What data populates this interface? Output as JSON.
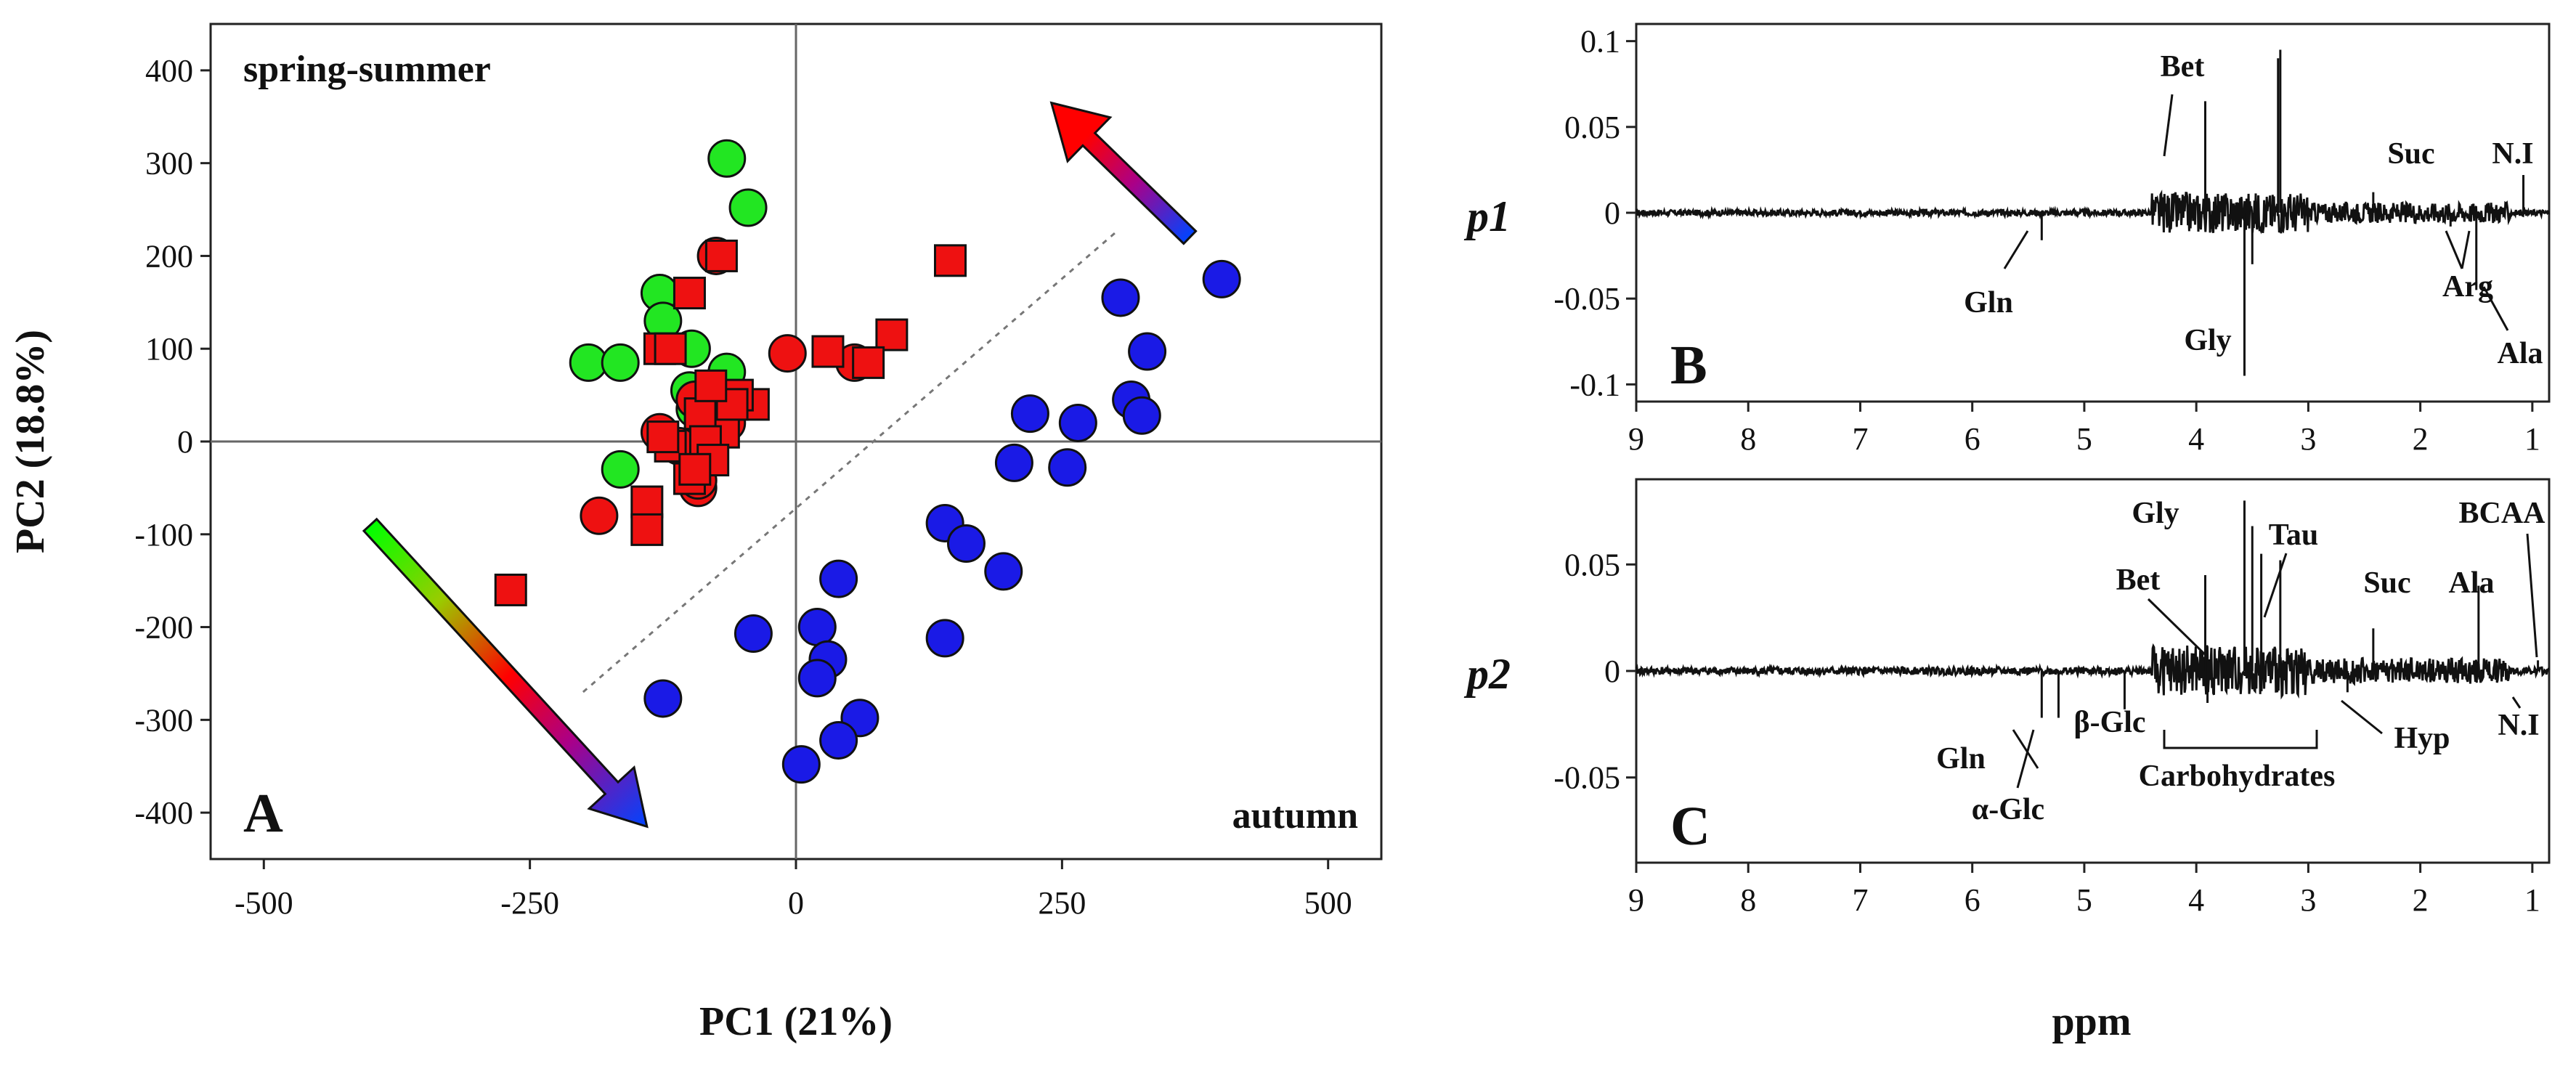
{
  "chart_data": [
    {
      "type": "scatter",
      "panel_label": "A",
      "xlabel": "PC1 (21%)",
      "ylabel": "PC2 (18.8%)",
      "xlim": [
        -550,
        550
      ],
      "ylim": [
        -450,
        450
      ],
      "xticks": [
        -500,
        -250,
        0,
        250,
        500
      ],
      "yticks": [
        400,
        300,
        200,
        100,
        0,
        -100,
        -200,
        -300,
        -400
      ],
      "annotations": [
        "spring-summer",
        "autumn"
      ],
      "series": [
        {
          "name": "green circles",
          "marker": "circle",
          "color": "#22e622",
          "points": [
            [
              -65,
              305
            ],
            [
              -45,
              252
            ],
            [
              -128,
              160
            ],
            [
              -125,
              130
            ],
            [
              -98,
              100
            ],
            [
              -195,
              85
            ],
            [
              -165,
              85
            ],
            [
              -100,
              55
            ],
            [
              -65,
              75
            ],
            [
              -95,
              35
            ],
            [
              -85,
              20
            ],
            [
              -165,
              -30
            ]
          ]
        },
        {
          "name": "red circles",
          "marker": "circle",
          "color": "#ee1111",
          "points": [
            [
              -75,
              200
            ],
            [
              -8,
              95
            ],
            [
              55,
              85
            ],
            [
              -92,
              -50
            ],
            [
              -128,
              10
            ],
            [
              -110,
              -5
            ],
            [
              -65,
              20
            ],
            [
              -95,
              45
            ],
            [
              -92,
              -42
            ],
            [
              -185,
              -80
            ]
          ]
        },
        {
          "name": "red squares",
          "marker": "square",
          "color": "#ee1111",
          "points": [
            [
              -70,
              200
            ],
            [
              -100,
              160
            ],
            [
              -128,
              100
            ],
            [
              -118,
              100
            ],
            [
              145,
              195
            ],
            [
              30,
              97
            ],
            [
              90,
              115
            ],
            [
              68,
              85
            ],
            [
              -40,
              40
            ],
            [
              -55,
              50
            ],
            [
              -75,
              35
            ],
            [
              -68,
              10
            ],
            [
              -90,
              30
            ],
            [
              -85,
              0
            ],
            [
              -78,
              -20
            ],
            [
              -118,
              -5
            ],
            [
              -125,
              5
            ],
            [
              -100,
              -40
            ],
            [
              -95,
              -30
            ],
            [
              -140,
              -65
            ],
            [
              -140,
              -95
            ],
            [
              -268,
              -160
            ],
            [
              -60,
              40
            ],
            [
              -80,
              60
            ]
          ]
        },
        {
          "name": "blue circles",
          "marker": "circle",
          "color": "#1a1ae6",
          "points": [
            [
              400,
              175
            ],
            [
              305,
              155
            ],
            [
              330,
              97
            ],
            [
              315,
              45
            ],
            [
              325,
              28
            ],
            [
              220,
              30
            ],
            [
              265,
              20
            ],
            [
              205,
              -23
            ],
            [
              255,
              -28
            ],
            [
              140,
              -88
            ],
            [
              160,
              -110
            ],
            [
              195,
              -140
            ],
            [
              140,
              -212
            ],
            [
              40,
              -148
            ],
            [
              20,
              -200
            ],
            [
              30,
              -235
            ],
            [
              20,
              -255
            ],
            [
              60,
              -298
            ],
            [
              40,
              -322
            ],
            [
              5,
              -348
            ],
            [
              -40,
              -207
            ],
            [
              -125,
              -277
            ]
          ]
        }
      ],
      "dashed_line": [
        [
          -200,
          -270
        ],
        [
          300,
          225
        ]
      ],
      "arrows": [
        {
          "from": [
            -400,
            -90
          ],
          "to": [
            -140,
            -415
          ],
          "gradient": [
            "#00ff00",
            "#ff0000",
            "#0033ff"
          ]
        },
        {
          "from": [
            370,
            220
          ],
          "to": [
            240,
            365
          ],
          "gradient": [
            "#0033ff",
            "#ff0000"
          ]
        }
      ]
    },
    {
      "type": "line",
      "panel_label": "B",
      "ylabel": "p1",
      "xlabel": "ppm",
      "xlim": [
        9,
        0.85
      ],
      "ylim": [
        -0.11,
        0.11
      ],
      "xticks": [
        9,
        8,
        7,
        6,
        5,
        4,
        3,
        2,
        1
      ],
      "yticks": [
        0.1,
        0.05,
        0,
        -0.05,
        -0.1
      ],
      "ytick_labels": [
        "0.1",
        "0.05",
        "0",
        "-0.05",
        "-0.1"
      ],
      "peaks": [
        [
          3.92,
          0.065
        ],
        [
          3.27,
          0.09
        ],
        [
          3.25,
          0.095
        ],
        [
          2.42,
          0.012
        ],
        [
          1.08,
          0.022
        ],
        [
          5.38,
          -0.016
        ],
        [
          3.57,
          -0.095
        ],
        [
          3.5,
          -0.03
        ],
        [
          1.73,
          -0.008
        ],
        [
          1.5,
          -0.045
        ]
      ],
      "peak_labels": [
        "Bet",
        "Suc",
        "N.I",
        "Gln",
        "Gly",
        "Arg",
        "Ala"
      ]
    },
    {
      "type": "line",
      "panel_label": "C",
      "ylabel": "p2",
      "xlabel": "ppm",
      "xlim": [
        9,
        0.85
      ],
      "ylim": [
        -0.09,
        0.09
      ],
      "xticks": [
        9,
        8,
        7,
        6,
        5,
        4,
        3,
        2,
        1
      ],
      "yticks": [
        0.05,
        0,
        -0.05
      ],
      "ytick_labels": [
        "0.05",
        "0",
        "-0.05"
      ],
      "peaks": [
        [
          3.57,
          0.08
        ],
        [
          3.5,
          0.068
        ],
        [
          3.42,
          0.055
        ],
        [
          3.25,
          0.052
        ],
        [
          3.92,
          0.045
        ],
        [
          2.42,
          0.02
        ],
        [
          1.48,
          0.04
        ],
        [
          0.95,
          0.005
        ],
        [
          5.38,
          -0.022
        ],
        [
          5.23,
          -0.022
        ],
        [
          4.64,
          -0.018
        ],
        [
          2.65,
          -0.01
        ],
        [
          3.9,
          -0.015
        ]
      ],
      "peak_labels": [
        "Gly",
        "Tau",
        "BCAA",
        "Bet",
        "Suc",
        "Ala",
        "Gln",
        "β-Glc",
        "Hyp",
        "N.I",
        "α-Glc",
        "Carbohydrates"
      ]
    }
  ]
}
